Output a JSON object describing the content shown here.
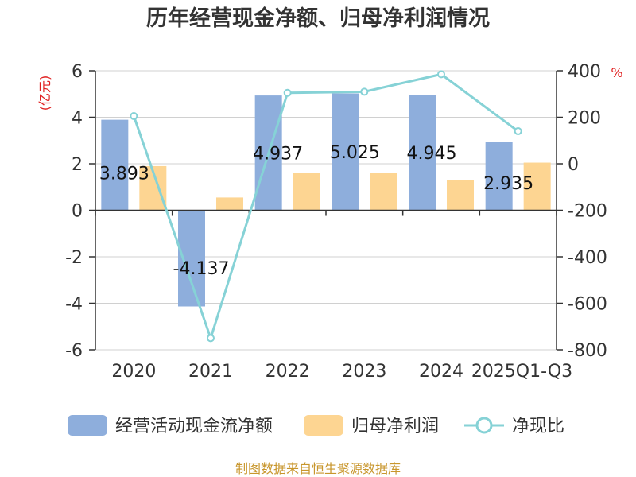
{
  "chart_data": {
    "type": "bar",
    "title": "历年经营现金净额、归母净利润情况",
    "categories": [
      "2020",
      "2021",
      "2022",
      "2023",
      "2024",
      "2025Q1-Q3"
    ],
    "series": [
      {
        "name": "经营活动现金流净额",
        "type": "bar",
        "axis": "left",
        "color": "#8eaedc",
        "values": [
          3.893,
          -4.137,
          4.937,
          5.025,
          4.945,
          2.935
        ]
      },
      {
        "name": "归母净利润",
        "type": "bar",
        "axis": "left",
        "color": "#fdd592",
        "values": [
          1.9,
          0.55,
          1.6,
          1.6,
          1.3,
          2.05
        ]
      },
      {
        "name": "净现比",
        "type": "line",
        "axis": "right",
        "color": "#86d2d6",
        "values": [
          205,
          -750,
          305,
          310,
          385,
          140
        ]
      }
    ],
    "left_axis": {
      "label": "(亿元)",
      "min": -6,
      "max": 6,
      "ticks": [
        -6,
        -4,
        -2,
        0,
        2,
        4,
        6
      ]
    },
    "right_axis": {
      "label": "%",
      "min": -800,
      "max": 400,
      "ticks": [
        -800,
        -600,
        -400,
        -200,
        0,
        200,
        400
      ]
    },
    "data_labels": [
      "3.893",
      "-4.137",
      "4.937",
      "5.025",
      "4.945",
      "2.935"
    ],
    "grid": true,
    "legend_position": "bottom",
    "source": "制图数据来自恒生聚源数据库"
  }
}
